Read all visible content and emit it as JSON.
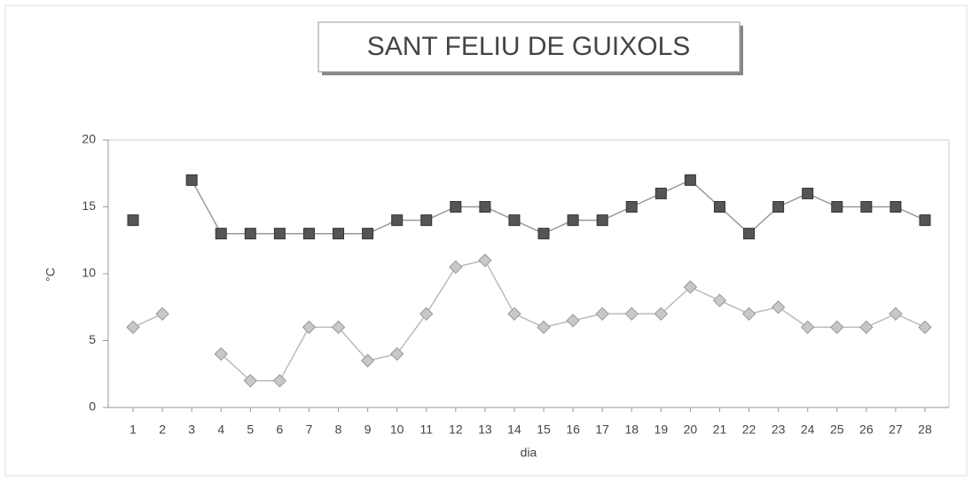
{
  "chart_data": {
    "type": "line",
    "title": "SANT FELIU DE GUIXOLS",
    "x_label": "dia",
    "y_label": "°C",
    "categories": [
      "1",
      "2",
      "3",
      "4",
      "5",
      "6",
      "7",
      "8",
      "9",
      "10",
      "11",
      "12",
      "13",
      "14",
      "15",
      "16",
      "17",
      "18",
      "19",
      "20",
      "21",
      "22",
      "23",
      "24",
      "25",
      "26",
      "27",
      "28"
    ],
    "series": [
      {
        "color": "#555555",
        "marker": "square",
        "values": [
          14,
          null,
          17,
          13,
          13,
          13,
          13,
          13,
          13,
          14,
          14,
          15,
          15,
          14,
          13,
          14,
          14,
          15,
          16,
          17,
          15,
          13,
          15,
          16,
          15,
          15,
          15,
          14
        ]
      },
      {
        "color": "#c8c8c8",
        "marker": "diamond",
        "values": [
          6,
          7,
          null,
          4,
          2,
          2,
          6,
          6,
          3.5,
          4,
          7,
          10.5,
          11,
          7,
          6,
          6.5,
          7,
          7,
          7,
          9,
          8,
          7,
          7.5,
          6,
          6,
          6,
          7,
          6
        ]
      }
    ],
    "ylim": [
      0,
      20
    ],
    "yticks": [
      0,
      5,
      10,
      15,
      20
    ],
    "grid": false
  }
}
